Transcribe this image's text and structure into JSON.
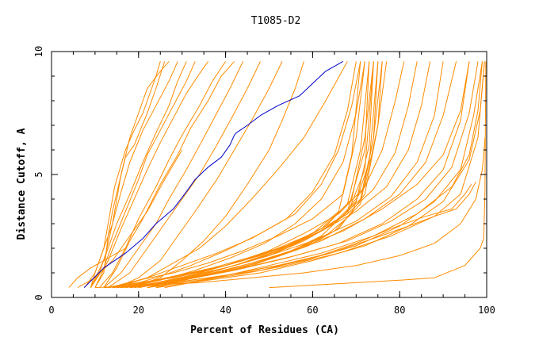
{
  "chart_data": {
    "type": "line",
    "title": "T1085-D2",
    "xlabel": "Percent of Residues (CA)",
    "ylabel": "Distance Cutoff, A",
    "xlim": [
      0,
      100
    ],
    "ylim": [
      0,
      10
    ],
    "x_major_ticks": [
      0,
      20,
      40,
      60,
      80,
      100
    ],
    "x_tick_labels": [
      "0",
      "20",
      "40",
      "60",
      "80",
      "100"
    ],
    "y_major_ticks": [
      0,
      5,
      10
    ],
    "y_tick_labels": [
      "0",
      "5",
      "10"
    ],
    "x_minor_step": 5,
    "y_minor_step": 1,
    "grid": false,
    "legend": "none",
    "colors": {
      "highlight": "#0000cc",
      "others": "#ff8c00",
      "frame": "#000000"
    },
    "series": [
      {
        "highlight": true,
        "x": [
          7.5,
          12,
          17,
          21,
          24,
          28,
          31,
          33,
          36,
          39,
          41,
          42,
          42.5,
          45,
          48,
          52,
          57,
          60,
          63,
          67
        ],
        "y": [
          0.4,
          1.2,
          1.8,
          2.4,
          3.0,
          3.6,
          4.3,
          4.8,
          5.3,
          5.7,
          6.2,
          6.6,
          6.7,
          7.0,
          7.4,
          7.8,
          8.2,
          8.7,
          9.2,
          9.6
        ]
      },
      {
        "x": [
          9,
          10,
          12,
          13,
          14.5,
          17,
          19,
          21,
          22,
          23,
          24,
          25
        ],
        "y": [
          0.4,
          1.0,
          2.0,
          3.0,
          4.5,
          6.0,
          6.8,
          7.5,
          8.0,
          8.5,
          9.0,
          9.6
        ]
      },
      {
        "x": [
          9,
          11,
          12.5,
          14,
          15,
          16,
          17,
          19,
          22,
          24,
          26
        ],
        "y": [
          0.4,
          1.0,
          1.8,
          3.0,
          4.0,
          5.0,
          5.7,
          6.2,
          7.5,
          8.5,
          9.6
        ]
      },
      {
        "x": [
          10,
          12,
          13,
          14,
          16,
          18,
          20,
          22,
          25,
          27
        ],
        "y": [
          0.4,
          1.0,
          2.5,
          3.5,
          5.0,
          6.5,
          7.5,
          8.5,
          9.2,
          9.6
        ]
      },
      {
        "x": [
          8,
          10,
          12,
          14,
          16,
          18,
          21,
          24,
          27,
          29
        ],
        "y": [
          0.5,
          1.0,
          2.0,
          3.0,
          4.3,
          5.5,
          6.8,
          7.8,
          8.8,
          9.6
        ]
      },
      {
        "x": [
          9,
          12,
          15,
          18,
          21,
          24,
          27,
          29,
          31
        ],
        "y": [
          0.4,
          1.5,
          3.0,
          4.2,
          5.5,
          6.7,
          7.8,
          8.8,
          9.6
        ]
      },
      {
        "x": [
          9,
          12,
          14,
          17,
          20,
          22,
          25,
          28,
          31,
          33
        ],
        "y": [
          0.4,
          1.2,
          2.2,
          3.5,
          4.8,
          5.8,
          6.8,
          7.8,
          8.8,
          9.6
        ]
      },
      {
        "x": [
          10,
          13,
          16,
          19,
          22,
          25,
          28,
          31,
          34,
          36
        ],
        "y": [
          0.4,
          1.5,
          2.8,
          4.0,
          5.2,
          6.3,
          7.3,
          8.3,
          9.1,
          9.6
        ]
      },
      {
        "x": [
          11,
          14,
          17,
          20,
          24,
          27,
          30,
          34,
          37,
          40
        ],
        "y": [
          0.4,
          1.0,
          2.0,
          3.2,
          4.5,
          5.6,
          6.6,
          7.8,
          8.8,
          9.6
        ]
      },
      {
        "x": [
          12,
          15,
          18,
          21,
          25,
          29,
          32,
          36,
          39,
          42
        ],
        "y": [
          0.4,
          1.2,
          2.3,
          3.2,
          4.6,
          5.8,
          6.9,
          8.0,
          9.0,
          9.6
        ]
      },
      {
        "x": [
          12,
          16,
          20,
          24,
          27,
          31,
          35,
          38,
          41,
          44
        ],
        "y": [
          0.4,
          1.0,
          2.0,
          3.0,
          4.0,
          5.2,
          6.5,
          7.5,
          8.5,
          9.6
        ]
      },
      {
        "x": [
          13,
          18,
          22,
          26,
          30,
          34,
          38,
          42,
          45,
          48
        ],
        "y": [
          0.4,
          1.0,
          2.0,
          3.0,
          4.0,
          5.0,
          6.2,
          7.5,
          8.5,
          9.6
        ]
      },
      {
        "x": [
          15,
          20,
          25,
          29,
          33,
          38,
          42,
          46,
          50,
          53
        ],
        "y": [
          0.4,
          0.8,
          1.5,
          2.5,
          3.5,
          4.8,
          6.0,
          7.2,
          8.5,
          9.6
        ]
      },
      {
        "x": [
          18,
          25,
          30,
          35,
          40,
          45,
          50,
          53,
          56,
          58
        ],
        "y": [
          0.4,
          0.8,
          1.5,
          2.3,
          3.3,
          4.6,
          6.0,
          7.2,
          8.5,
          9.6
        ]
      },
      {
        "x": [
          15,
          22,
          28,
          34,
          40,
          46,
          52,
          58,
          63,
          68
        ],
        "y": [
          0.4,
          0.8,
          1.4,
          2.0,
          2.9,
          4.0,
          5.2,
          6.5,
          8.0,
          9.6
        ]
      },
      {
        "x": [
          16,
          24,
          32,
          40,
          48,
          56,
          62,
          66,
          69,
          71
        ],
        "y": [
          0.4,
          0.8,
          1.3,
          1.9,
          2.6,
          3.4,
          4.6,
          6.0,
          7.8,
          9.6
        ]
      },
      {
        "x": [
          14,
          22,
          30,
          38,
          46,
          54,
          60,
          65,
          68,
          70
        ],
        "y": [
          0.4,
          0.8,
          1.3,
          1.8,
          2.4,
          3.2,
          4.3,
          5.8,
          7.6,
          9.6
        ]
      },
      {
        "x": [
          17,
          25,
          33,
          41,
          49,
          56,
          62,
          67,
          70,
          72
        ],
        "y": [
          0.4,
          0.7,
          1.1,
          1.6,
          2.2,
          3.0,
          4.0,
          5.5,
          7.5,
          9.6
        ]
      },
      {
        "x": [
          13,
          20,
          28,
          36,
          44,
          52,
          60,
          67,
          70,
          72
        ],
        "y": [
          0.4,
          0.7,
          1.0,
          1.4,
          1.9,
          2.5,
          3.2,
          4.2,
          6.5,
          9.6
        ]
      },
      {
        "x": [
          15,
          22,
          30,
          38,
          46,
          54,
          62,
          68,
          71,
          73
        ],
        "y": [
          0.4,
          0.6,
          0.9,
          1.2,
          1.6,
          2.1,
          2.8,
          3.8,
          6.0,
          9.6
        ]
      },
      {
        "x": [
          12,
          20,
          28,
          36,
          44,
          52,
          60,
          66,
          69,
          71
        ],
        "y": [
          0.4,
          0.6,
          0.8,
          1.1,
          1.5,
          2.0,
          2.6,
          3.5,
          5.8,
          9.6
        ]
      },
      {
        "x": [
          16,
          24,
          32,
          40,
          48,
          56,
          63,
          69,
          72,
          74
        ],
        "y": [
          0.4,
          0.6,
          0.9,
          1.2,
          1.6,
          2.2,
          2.9,
          4.0,
          6.5,
          9.6
        ]
      },
      {
        "x": [
          18,
          26,
          34,
          42,
          50,
          58,
          65,
          71,
          74,
          75
        ],
        "y": [
          0.4,
          0.6,
          0.9,
          1.3,
          1.7,
          2.3,
          3.0,
          4.0,
          6.5,
          9.6
        ]
      },
      {
        "x": [
          14,
          22,
          30,
          38,
          46,
          54,
          62,
          68,
          72,
          73
        ],
        "y": [
          0.4,
          0.5,
          0.7,
          1.0,
          1.3,
          1.8,
          2.5,
          3.5,
          6.0,
          9.6
        ]
      },
      {
        "x": [
          17,
          25,
          33,
          41,
          49,
          57,
          65,
          71,
          74,
          76
        ],
        "y": [
          0.4,
          0.6,
          0.8,
          1.1,
          1.5,
          2.0,
          2.7,
          3.8,
          6.5,
          9.6
        ]
      },
      {
        "x": [
          19,
          27,
          35,
          43,
          51,
          59,
          66,
          72,
          75,
          76
        ],
        "y": [
          0.4,
          0.6,
          0.9,
          1.2,
          1.6,
          2.1,
          2.8,
          4.2,
          7.0,
          9.6
        ]
      },
      {
        "x": [
          15,
          23,
          31,
          39,
          47,
          55,
          63,
          69,
          73,
          75
        ],
        "y": [
          0.4,
          0.5,
          0.8,
          1.0,
          1.4,
          1.9,
          2.5,
          3.4,
          5.5,
          9.6
        ]
      },
      {
        "x": [
          20,
          28,
          36,
          44,
          52,
          60,
          67,
          72,
          75,
          77
        ],
        "y": [
          0.4,
          0.7,
          1.0,
          1.4,
          1.9,
          2.5,
          3.3,
          4.5,
          7.0,
          9.6
        ]
      },
      {
        "x": [
          13,
          21,
          29,
          37,
          45,
          53,
          61,
          68,
          72,
          74
        ],
        "y": [
          0.4,
          0.6,
          0.9,
          1.2,
          1.6,
          2.0,
          2.6,
          3.4,
          5.2,
          9.6
        ]
      },
      {
        "x": [
          16,
          24,
          32,
          40,
          48,
          56,
          64,
          70,
          73,
          74
        ],
        "y": [
          0.4,
          0.7,
          1.0,
          1.3,
          1.7,
          2.2,
          2.9,
          3.9,
          6.2,
          9.6
        ]
      },
      {
        "x": [
          20,
          30,
          40,
          50,
          58,
          66,
          72,
          76,
          79,
          81
        ],
        "y": [
          0.4,
          0.8,
          1.3,
          1.9,
          2.6,
          3.4,
          4.5,
          6.0,
          8.0,
          9.6
        ]
      },
      {
        "x": [
          22,
          32,
          42,
          52,
          60,
          68,
          74,
          79,
          82,
          84
        ],
        "y": [
          0.4,
          0.8,
          1.3,
          1.9,
          2.6,
          3.4,
          4.4,
          5.9,
          7.8,
          9.6
        ]
      },
      {
        "x": [
          24,
          34,
          44,
          54,
          62,
          70,
          77,
          82,
          85,
          87
        ],
        "y": [
          0.4,
          0.9,
          1.4,
          2.0,
          2.7,
          3.5,
          4.5,
          6.0,
          7.8,
          9.6
        ]
      },
      {
        "x": [
          20,
          30,
          40,
          50,
          60,
          70,
          78,
          84,
          88,
          90
        ],
        "y": [
          0.4,
          0.8,
          1.2,
          1.7,
          2.3,
          3.1,
          4.1,
          5.5,
          7.4,
          9.6
        ]
      },
      {
        "x": [
          22,
          32,
          42,
          52,
          62,
          72,
          80,
          86,
          90,
          93
        ],
        "y": [
          0.4,
          0.8,
          1.2,
          1.7,
          2.3,
          3.2,
          4.2,
          5.5,
          7.4,
          9.6
        ]
      },
      {
        "x": [
          24,
          35,
          46,
          57,
          67,
          76,
          84,
          90,
          94,
          96
        ],
        "y": [
          0.4,
          0.9,
          1.4,
          2.0,
          2.7,
          3.6,
          4.6,
          5.8,
          7.6,
          9.6
        ]
      },
      {
        "x": [
          20,
          32,
          44,
          56,
          68,
          78,
          86,
          92,
          96,
          98
        ],
        "y": [
          0.4,
          0.8,
          1.2,
          1.7,
          2.3,
          3.1,
          4.0,
          5.3,
          7.5,
          9.6
        ]
      },
      {
        "x": [
          18,
          30,
          42,
          54,
          66,
          76,
          84,
          90,
          94,
          96
        ],
        "y": [
          0.4,
          0.7,
          1.1,
          1.6,
          2.2,
          3.0,
          4.0,
          5.2,
          7.2,
          9.6
        ]
      },
      {
        "x": [
          22,
          34,
          46,
          58,
          70,
          80,
          88,
          94,
          97,
          99
        ],
        "y": [
          0.4,
          0.7,
          1.1,
          1.5,
          2.1,
          2.9,
          3.9,
          5.2,
          7.4,
          9.6
        ]
      },
      {
        "x": [
          26,
          38,
          50,
          62,
          74,
          84,
          92,
          96,
          98,
          99
        ],
        "y": [
          0.4,
          0.8,
          1.3,
          1.8,
          2.5,
          3.4,
          4.5,
          5.8,
          7.6,
          9.6
        ]
      },
      {
        "x": [
          24,
          36,
          48,
          60,
          72,
          82,
          90,
          96,
          98.5,
          99.5
        ],
        "y": [
          0.4,
          0.7,
          1.0,
          1.5,
          2.1,
          2.9,
          3.9,
          5.6,
          7.6,
          9.6
        ]
      },
      {
        "x": [
          18,
          30,
          42,
          54,
          66,
          78,
          88,
          94,
          98,
          99.5
        ],
        "y": [
          0.4,
          0.6,
          0.9,
          1.3,
          1.8,
          2.5,
          3.3,
          4.2,
          6.5,
          9.6
        ]
      },
      {
        "x": [
          12,
          24,
          36,
          48,
          60,
          70,
          78,
          86,
          92,
          95,
          96.5
        ],
        "y": [
          0.4,
          0.5,
          0.8,
          1.1,
          1.6,
          2.2,
          2.8,
          3.3,
          3.6,
          4.2,
          4.6
        ]
      },
      {
        "x": [
          16,
          28,
          40,
          52,
          64,
          74,
          82,
          88,
          93,
          96,
          97.5
        ],
        "y": [
          0.4,
          0.6,
          0.9,
          1.3,
          1.8,
          2.4,
          2.9,
          3.3,
          3.6,
          4.2,
          4.7
        ]
      },
      {
        "x": [
          10,
          22,
          34,
          46,
          58,
          70,
          80,
          88,
          94,
          97.5,
          99,
          99.5,
          99.6
        ],
        "y": [
          0.4,
          0.5,
          0.6,
          0.8,
          1.0,
          1.3,
          1.7,
          2.2,
          3.0,
          4.0,
          5.2,
          6.2,
          6.5
        ]
      },
      {
        "x": [
          50,
          60,
          70,
          80,
          88,
          95,
          98.5,
          99.3,
          99.6,
          99.8
        ],
        "y": [
          0.4,
          0.5,
          0.6,
          0.7,
          0.8,
          1.3,
          2.0,
          2.4,
          4.2,
          9.6
        ]
      },
      {
        "x": [
          4,
          6,
          9,
          12,
          15,
          17
        ],
        "y": [
          0.4,
          0.8,
          1.2,
          1.5,
          1.8,
          2.0
        ]
      },
      {
        "x": [
          6,
          10,
          14,
          18,
          22,
          26,
          30
        ],
        "y": [
          0.4,
          0.8,
          1.5,
          2.5,
          3.5,
          4.8,
          6.0
        ]
      }
    ]
  }
}
